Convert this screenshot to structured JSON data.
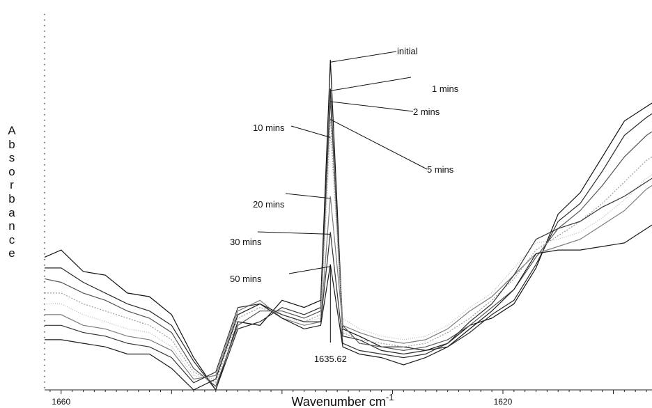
{
  "chart_data": {
    "type": "line",
    "title": "",
    "xlabel": "Wavenumber cm",
    "xlabel_superscript": "-1",
    "ylabel": "Absorbance",
    "x_reversed": true,
    "xlim": [
      1661.5,
      1606.5
    ],
    "ylim": [
      0,
      1
    ],
    "x_tick_labels": [
      {
        "value": 1660,
        "label": "1660"
      },
      {
        "value": 1620,
        "label": "1620"
      }
    ],
    "peak": {
      "x": 1635.62,
      "label": "1635.62"
    },
    "x": [
      1661.5,
      1660,
      1658,
      1656,
      1654,
      1652,
      1650,
      1648,
      1646,
      1644,
      1642,
      1640,
      1638,
      1636.5,
      1635.62,
      1634.5,
      1633,
      1631,
      1629,
      1627,
      1625,
      1623,
      1621,
      1619,
      1617,
      1615,
      1613,
      1611,
      1609,
      1607,
      1606.5
    ],
    "series": [
      {
        "name": "initial",
        "values": [
          0.37,
          0.39,
          0.33,
          0.32,
          0.27,
          0.26,
          0.21,
          0.09,
          0.0,
          0.19,
          0.18,
          0.25,
          0.23,
          0.25,
          0.92,
          0.17,
          0.15,
          0.12,
          0.12,
          0.11,
          0.13,
          0.18,
          0.2,
          0.24,
          0.34,
          0.49,
          0.55,
          0.65,
          0.75,
          0.79,
          0.8
        ]
      },
      {
        "name": "1 mins",
        "values": [
          0.34,
          0.34,
          0.3,
          0.27,
          0.24,
          0.22,
          0.18,
          0.08,
          0.0,
          0.17,
          0.19,
          0.23,
          0.21,
          0.23,
          0.84,
          0.15,
          0.14,
          0.11,
          0.1,
          0.11,
          0.12,
          0.16,
          0.21,
          0.25,
          0.35,
          0.47,
          0.52,
          0.61,
          0.71,
          0.76,
          0.77
        ]
      },
      {
        "name": "2 mins",
        "values": [
          0.31,
          0.3,
          0.27,
          0.25,
          0.22,
          0.2,
          0.16,
          0.06,
          0.01,
          0.18,
          0.22,
          0.22,
          0.2,
          0.22,
          0.81,
          0.18,
          0.13,
          0.12,
          0.11,
          0.12,
          0.14,
          0.18,
          0.23,
          0.28,
          0.37,
          0.45,
          0.5,
          0.57,
          0.65,
          0.71,
          0.72
        ]
      },
      {
        "name": "5 mins",
        "values": [
          0.27,
          0.27,
          0.24,
          0.22,
          0.2,
          0.18,
          0.14,
          0.05,
          0.02,
          0.2,
          0.23,
          0.21,
          0.19,
          0.21,
          0.76,
          0.16,
          0.14,
          0.13,
          0.12,
          0.13,
          0.16,
          0.2,
          0.25,
          0.31,
          0.39,
          0.43,
          0.47,
          0.52,
          0.58,
          0.64,
          0.65
        ]
      },
      {
        "name": "10 mins",
        "values": [
          0.24,
          0.24,
          0.21,
          0.19,
          0.17,
          0.16,
          0.12,
          0.04,
          0.03,
          0.21,
          0.24,
          0.2,
          0.19,
          0.2,
          0.71,
          0.2,
          0.17,
          0.15,
          0.14,
          0.15,
          0.18,
          0.23,
          0.27,
          0.34,
          0.41,
          0.42,
          0.44,
          0.48,
          0.53,
          0.59,
          0.6
        ]
      },
      {
        "name": "20 mins",
        "values": [
          0.21,
          0.21,
          0.18,
          0.17,
          0.15,
          0.14,
          0.11,
          0.03,
          0.04,
          0.22,
          0.25,
          0.2,
          0.18,
          0.19,
          0.54,
          0.18,
          0.16,
          0.14,
          0.13,
          0.14,
          0.17,
          0.22,
          0.26,
          0.32,
          0.38,
          0.4,
          0.42,
          0.46,
          0.5,
          0.56,
          0.57
        ]
      },
      {
        "name": "30 mins",
        "values": [
          0.18,
          0.18,
          0.16,
          0.15,
          0.13,
          0.12,
          0.09,
          0.02,
          0.05,
          0.23,
          0.24,
          0.21,
          0.19,
          0.19,
          0.44,
          0.13,
          0.11,
          0.1,
          0.09,
          0.1,
          0.13,
          0.19,
          0.24,
          0.32,
          0.42,
          0.45,
          0.47,
          0.51,
          0.54,
          0.58,
          0.59
        ]
      },
      {
        "name": "50 mins",
        "values": [
          0.14,
          0.14,
          0.13,
          0.12,
          0.1,
          0.1,
          0.06,
          0.0,
          0.03,
          0.21,
          0.24,
          0.2,
          0.17,
          0.18,
          0.35,
          0.12,
          0.1,
          0.09,
          0.07,
          0.09,
          0.12,
          0.17,
          0.22,
          0.28,
          0.38,
          0.39,
          0.39,
          0.4,
          0.41,
          0.45,
          0.46
        ]
      }
    ],
    "annotations": [
      {
        "label": "initial",
        "series": "initial"
      },
      {
        "label": "1 mins",
        "series": "1 mins"
      },
      {
        "label": "2 mins",
        "series": "2 mins"
      },
      {
        "label": "5 mins",
        "series": "5 mins"
      },
      {
        "label": "10 mins",
        "series": "10 mins"
      },
      {
        "label": "20 mins",
        "series": "20 mins"
      },
      {
        "label": "30 mins",
        "series": "30 mins"
      },
      {
        "label": "50 mins",
        "series": "50 mins"
      }
    ],
    "legend": "none",
    "grid": false
  }
}
